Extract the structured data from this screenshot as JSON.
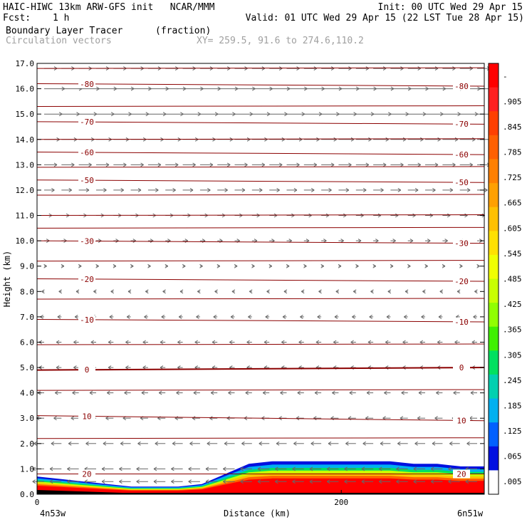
{
  "header": {
    "line1_left": "HAIC-HIWC 13km ARW-GFS init   NCAR/MMM",
    "line1_right": "Init: 00 UTC Wed 29 Apr 15",
    "fcst_label": "Fcst:",
    "fcst_value": "1 h",
    "valid": "Valid: 01 UTC Wed 29 Apr 15 (22 LST Tue 28 Apr 15)",
    "field_name": "Boundary Layer Tracer",
    "field_units": "(fraction)",
    "vectors_label": "Circulation vectors",
    "xy": "XY= 259.5, 91.6 to 274.6,110.2"
  },
  "chart_data": {
    "type": "heatmap",
    "ylabel": "Height (km)",
    "xlabel": "Distance (km)",
    "ylim": [
      0,
      17
    ],
    "xlim": [
      0,
      294
    ],
    "y_ticks": [
      "0.0",
      "1.0",
      "2.0",
      "3.0",
      "4.0",
      "5.0",
      "6.0",
      "7.0",
      "8.0",
      "9.0",
      "10.0",
      "11.0",
      "12.0",
      "13.0",
      "14.0",
      "15.0",
      "16.0",
      "17.0"
    ],
    "x_ticks": [
      {
        "value": 0,
        "label": "0"
      },
      {
        "value": 200,
        "label": "200"
      }
    ],
    "left_endpoint": "4n53w",
    "right_endpoint": "6n51w",
    "colorbar_labels": [
      "-",
      ".905",
      ".845",
      ".785",
      ".725",
      ".665",
      ".605",
      ".545",
      ".485",
      ".425",
      ".365",
      ".305",
      ".245",
      ".185",
      ".125",
      ".065",
      ".005"
    ],
    "colorbar_colors": [
      "#ff0000",
      "#ff2020",
      "#ff4000",
      "#ff6000",
      "#ff8000",
      "#ffa000",
      "#ffc000",
      "#ffe000",
      "#f0ff00",
      "#c8ff00",
      "#90ff00",
      "#40f000",
      "#00e060",
      "#00d0b0",
      "#00b0f0",
      "#0060ff",
      "#0010e0",
      "#ffffff"
    ],
    "temperature_contours": [
      {
        "label": "-80",
        "y_left": 16.2,
        "y_right": 16.1
      },
      {
        "label": "-70",
        "y_left": 14.7,
        "y_right": 14.6
      },
      {
        "label": "-60",
        "y_left": 13.5,
        "y_right": 13.4
      },
      {
        "label": "-50",
        "y_left": 12.4,
        "y_right": 12.3
      },
      {
        "label": "-30",
        "y_left": 10.0,
        "y_right": 9.9
      },
      {
        "label": "-20",
        "y_left": 8.5,
        "y_right": 8.4
      },
      {
        "label": "-10",
        "y_left": 6.9,
        "y_right": 6.8
      },
      {
        "label": "0",
        "y_left": 4.9,
        "y_right": 5.0
      },
      {
        "label": "10",
        "y_left": 3.1,
        "y_right": 2.9
      },
      {
        "label": "20",
        "y_left": 0.8,
        "y_right": 0.8
      }
    ],
    "tracer_top_km": [
      0.7,
      0.6,
      0.5,
      0.4,
      0.3,
      0.3,
      0.3,
      0.4,
      0.8,
      1.2,
      1.3,
      1.3,
      1.3,
      1.3,
      1.3,
      1.3,
      1.2,
      1.2,
      1.1,
      1.1
    ],
    "wind_rows": [
      {
        "y": 16.8,
        "u": 1.0
      },
      {
        "y": 16.0,
        "u": 1.6
      },
      {
        "y": 15.0,
        "u": 1.4
      },
      {
        "y": 14.0,
        "u": 1.2
      },
      {
        "y": 13.0,
        "u": 1.0
      },
      {
        "y": 12.0,
        "u": 0.8
      },
      {
        "y": 11.0,
        "u": 0.6
      },
      {
        "y": 10.0,
        "u": 0.4
      },
      {
        "y": 9.0,
        "u": 0.2
      },
      {
        "y": 8.0,
        "u": -0.2
      },
      {
        "y": 7.0,
        "u": -0.3
      },
      {
        "y": 6.0,
        "u": -0.4
      },
      {
        "y": 5.0,
        "u": -0.4
      },
      {
        "y": 4.0,
        "u": -0.5
      },
      {
        "y": 3.0,
        "u": -0.6
      },
      {
        "y": 2.0,
        "u": -0.8
      },
      {
        "y": 1.0,
        "u": -0.9
      },
      {
        "y": 0.5,
        "u": -0.9
      }
    ]
  }
}
